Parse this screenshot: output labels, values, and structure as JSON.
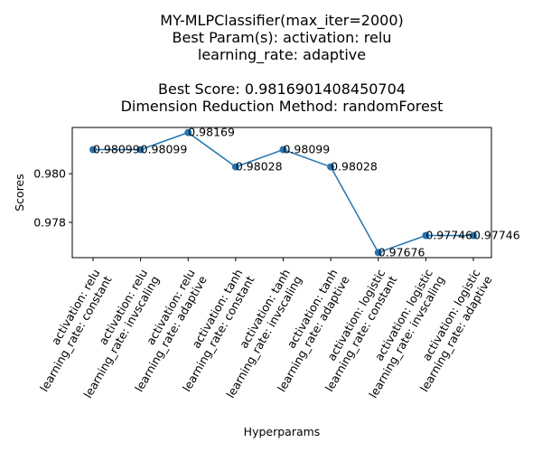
{
  "chart_data": {
    "type": "line",
    "title_lines": [
      "MY-MLPClassifier(max_iter=2000)",
      "Best Param(s): activation: relu",
      "learning_rate: adaptive",
      "",
      "Best Score: 0.9816901408450704",
      "Dimension Reduction Method: randomForest"
    ],
    "xlabel": "Hyperparams",
    "ylabel": "Scores",
    "categories": [
      [
        "activation: relu",
        "learning_rate: constant"
      ],
      [
        "activation: relu",
        "learning_rate: invscaling"
      ],
      [
        "activation: relu",
        "learning_rate: adaptive"
      ],
      [
        "activation: tanh",
        "learning_rate: constant"
      ],
      [
        "activation: tanh",
        "learning_rate: invscaling"
      ],
      [
        "activation: tanh",
        "learning_rate: adaptive"
      ],
      [
        "activation: logistic",
        "learning_rate: constant"
      ],
      [
        "activation: logistic",
        "learning_rate: invscaling"
      ],
      [
        "activation: logistic",
        "learning_rate: adaptive"
      ]
    ],
    "values": [
      0.98099,
      0.98099,
      0.98169,
      0.98028,
      0.98099,
      0.98028,
      0.97676,
      0.97746,
      0.97746
    ],
    "data_labels": [
      "0.98099",
      "0.98099",
      "0.98169",
      "0.98028",
      "0.98099",
      "0.98028",
      "0.97676",
      "0.97746",
      "0.97746"
    ],
    "yticks": [
      0.978,
      0.98
    ],
    "ytick_labels": [
      "0.978",
      "0.980"
    ],
    "ylim": [
      0.97655,
      0.9819
    ],
    "grid": false,
    "line_color": "#1f77b4"
  }
}
